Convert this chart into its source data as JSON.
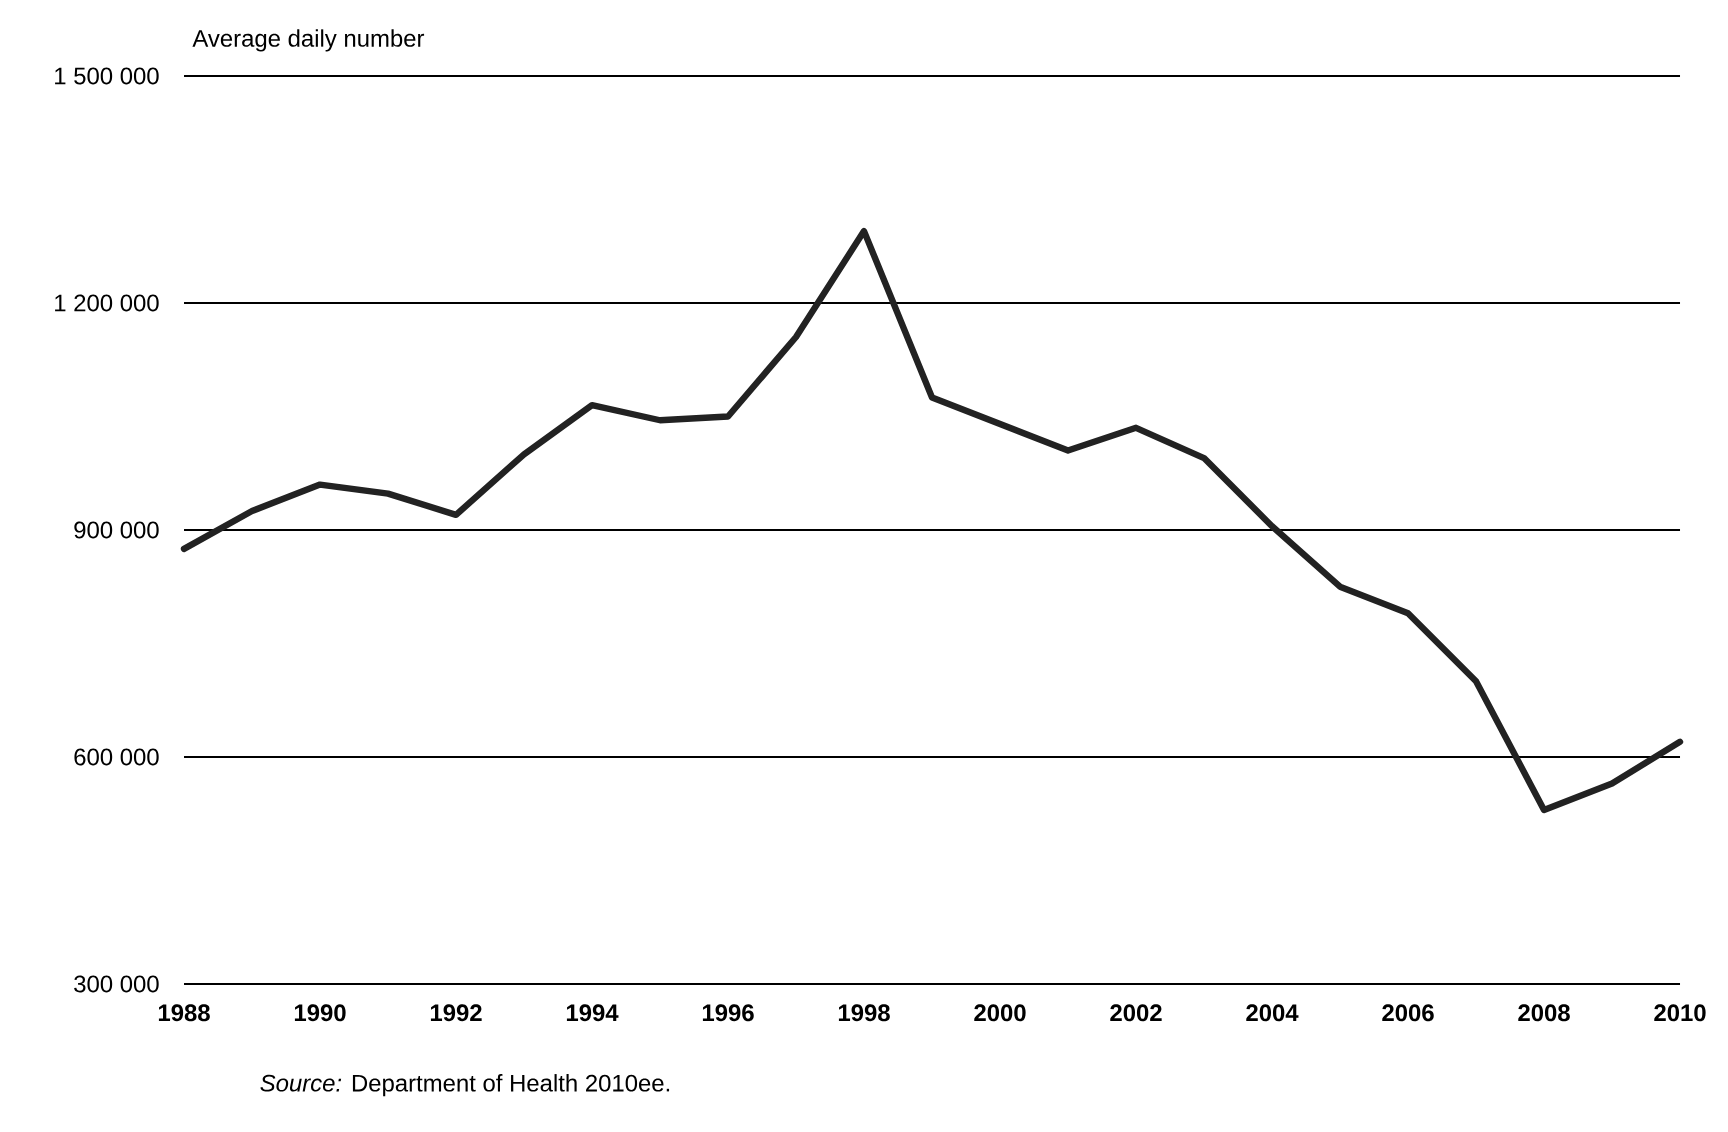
{
  "chart_data": {
    "type": "line",
    "ylabel": "Average daily number",
    "annotations": [
      "*Source:* Department of Health 2010ee."
    ],
    "x": [
      1988,
      1989,
      1990,
      1991,
      1992,
      1993,
      1994,
      1995,
      1996,
      1997,
      1998,
      1999,
      2000,
      2001,
      2002,
      2003,
      2004,
      2005,
      2006,
      2007,
      2008,
      2009,
      2010
    ],
    "series": [
      {
        "color": "#222222",
        "values": [
          875000,
          925000,
          960000,
          948000,
          920000,
          1000000,
          1065000,
          1045000,
          1050000,
          1155000,
          1295000,
          1075000,
          1040000,
          1005000,
          1035000,
          995000,
          905000,
          825000,
          790000,
          700000,
          530000,
          565000,
          620000
        ]
      }
    ],
    "xlim": [
      1988,
      2010
    ],
    "xticks": [
      1988,
      1990,
      1992,
      1994,
      1996,
      1998,
      2000,
      2002,
      2004,
      2006,
      2008,
      2010
    ],
    "ylim": [
      300000,
      1500000
    ],
    "yticks": [
      {
        "value": 300000,
        "label": "300 000"
      },
      {
        "value": 600000,
        "label": "600 000"
      },
      {
        "value": 900000,
        "label": "900 000"
      },
      {
        "value": 1200000,
        "label": "1 200 000"
      },
      {
        "value": 1500000,
        "label": "1 500 000"
      }
    ],
    "grid": "y",
    "marker": "none",
    "line_style": "solid"
  }
}
